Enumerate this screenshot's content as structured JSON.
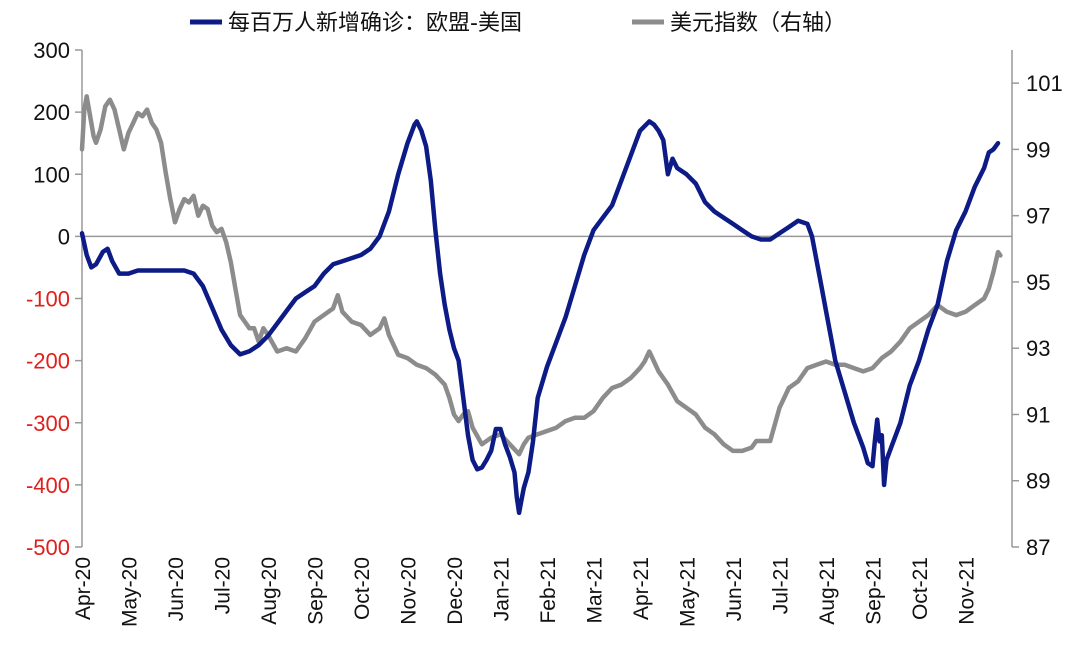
{
  "chart_data": {
    "type": "line",
    "legend_position": "top",
    "grid": false,
    "x_categories": [
      "Apr-20",
      "May-20",
      "Jun-20",
      "Jul-20",
      "Aug-20",
      "Sep-20",
      "Oct-20",
      "Nov-20",
      "Dec-20",
      "Jan-21",
      "Feb-21",
      "Mar-21",
      "Apr-21",
      "May-21",
      "Jun-21",
      "Jul-21",
      "Aug-21",
      "Sep-21",
      "Oct-21",
      "Nov-21"
    ],
    "y_left": {
      "min": -500,
      "max": 300,
      "ticks": [
        "300",
        "200",
        "100",
        "0",
        "-100",
        "-200",
        "-300",
        "-400",
        "-500"
      ],
      "negative_color": "#e0201c"
    },
    "y_right": {
      "min": 87,
      "max": 102,
      "ticks": [
        "101",
        "99",
        "97",
        "95",
        "93",
        "91",
        "89",
        "87"
      ]
    },
    "series": [
      {
        "name": "每百万人新增确诊：欧盟-美国",
        "axis": "left",
        "color": "#0d1b87",
        "points": [
          [
            0.0,
            5
          ],
          [
            0.1,
            -30
          ],
          [
            0.2,
            -50
          ],
          [
            0.3,
            -45
          ],
          [
            0.45,
            -25
          ],
          [
            0.55,
            -20
          ],
          [
            0.65,
            -40
          ],
          [
            0.8,
            -60
          ],
          [
            1.0,
            -60
          ],
          [
            1.2,
            -55
          ],
          [
            1.5,
            -55
          ],
          [
            1.8,
            -55
          ],
          [
            2.0,
            -55
          ],
          [
            2.2,
            -55
          ],
          [
            2.4,
            -60
          ],
          [
            2.6,
            -80
          ],
          [
            2.8,
            -115
          ],
          [
            3.0,
            -150
          ],
          [
            3.2,
            -175
          ],
          [
            3.4,
            -190
          ],
          [
            3.6,
            -185
          ],
          [
            3.8,
            -175
          ],
          [
            4.0,
            -160
          ],
          [
            4.2,
            -140
          ],
          [
            4.4,
            -120
          ],
          [
            4.6,
            -100
          ],
          [
            4.8,
            -90
          ],
          [
            5.0,
            -80
          ],
          [
            5.2,
            -60
          ],
          [
            5.4,
            -45
          ],
          [
            5.6,
            -40
          ],
          [
            5.8,
            -35
          ],
          [
            6.0,
            -30
          ],
          [
            6.2,
            -20
          ],
          [
            6.4,
            0
          ],
          [
            6.6,
            40
          ],
          [
            6.8,
            100
          ],
          [
            7.0,
            150
          ],
          [
            7.15,
            180
          ],
          [
            7.2,
            185
          ],
          [
            7.3,
            170
          ],
          [
            7.4,
            145
          ],
          [
            7.5,
            90
          ],
          [
            7.6,
            10
          ],
          [
            7.7,
            -60
          ],
          [
            7.8,
            -110
          ],
          [
            7.9,
            -150
          ],
          [
            8.0,
            -180
          ],
          [
            8.1,
            -200
          ],
          [
            8.2,
            -260
          ],
          [
            8.3,
            -320
          ],
          [
            8.4,
            -360
          ],
          [
            8.5,
            -375
          ],
          [
            8.6,
            -372
          ],
          [
            8.7,
            -360
          ],
          [
            8.8,
            -345
          ],
          [
            8.9,
            -310
          ],
          [
            9.0,
            -310
          ],
          [
            9.1,
            -335
          ],
          [
            9.2,
            -355
          ],
          [
            9.3,
            -380
          ],
          [
            9.35,
            -420
          ],
          [
            9.4,
            -445
          ],
          [
            9.45,
            -425
          ],
          [
            9.5,
            -405
          ],
          [
            9.6,
            -380
          ],
          [
            9.7,
            -330
          ],
          [
            9.8,
            -260
          ],
          [
            10.0,
            -210
          ],
          [
            10.2,
            -170
          ],
          [
            10.4,
            -130
          ],
          [
            10.6,
            -80
          ],
          [
            10.8,
            -30
          ],
          [
            11.0,
            10
          ],
          [
            11.2,
            30
          ],
          [
            11.4,
            50
          ],
          [
            11.6,
            90
          ],
          [
            11.8,
            130
          ],
          [
            12.0,
            170
          ],
          [
            12.2,
            185
          ],
          [
            12.3,
            180
          ],
          [
            12.4,
            170
          ],
          [
            12.5,
            155
          ],
          [
            12.6,
            100
          ],
          [
            12.7,
            125
          ],
          [
            12.8,
            110
          ],
          [
            13.0,
            100
          ],
          [
            13.2,
            85
          ],
          [
            13.4,
            55
          ],
          [
            13.6,
            40
          ],
          [
            13.8,
            30
          ],
          [
            14.0,
            20
          ],
          [
            14.2,
            10
          ],
          [
            14.4,
            0
          ],
          [
            14.6,
            -5
          ],
          [
            14.8,
            -5
          ],
          [
            15.0,
            5
          ],
          [
            15.2,
            15
          ],
          [
            15.4,
            25
          ],
          [
            15.6,
            20
          ],
          [
            15.7,
            0
          ],
          [
            15.8,
            -40
          ],
          [
            15.9,
            -80
          ],
          [
            16.0,
            -120
          ],
          [
            16.1,
            -160
          ],
          [
            16.2,
            -200
          ],
          [
            16.4,
            -250
          ],
          [
            16.6,
            -300
          ],
          [
            16.8,
            -340
          ],
          [
            16.9,
            -365
          ],
          [
            17.0,
            -370
          ],
          [
            17.05,
            -330
          ],
          [
            17.1,
            -295
          ],
          [
            17.15,
            -330
          ],
          [
            17.2,
            -320
          ],
          [
            17.25,
            -400
          ],
          [
            17.3,
            -360
          ],
          [
            17.4,
            -340
          ],
          [
            17.6,
            -300
          ],
          [
            17.8,
            -240
          ],
          [
            18.0,
            -200
          ],
          [
            18.2,
            -150
          ],
          [
            18.4,
            -110
          ],
          [
            18.6,
            -40
          ],
          [
            18.8,
            10
          ],
          [
            19.0,
            40
          ],
          [
            19.2,
            80
          ],
          [
            19.4,
            110
          ],
          [
            19.5,
            135
          ],
          [
            19.6,
            140
          ],
          [
            19.7,
            150
          ]
        ]
      },
      {
        "name": "美元指数（右轴）",
        "axis": "right",
        "color": "#8c8c8c",
        "points": [
          [
            0.0,
            99.0
          ],
          [
            0.05,
            100.2
          ],
          [
            0.1,
            100.6
          ],
          [
            0.15,
            100.2
          ],
          [
            0.2,
            99.8
          ],
          [
            0.25,
            99.4
          ],
          [
            0.3,
            99.2
          ],
          [
            0.4,
            99.6
          ],
          [
            0.5,
            100.3
          ],
          [
            0.6,
            100.5
          ],
          [
            0.7,
            100.2
          ],
          [
            0.8,
            99.6
          ],
          [
            0.9,
            99.0
          ],
          [
            1.0,
            99.5
          ],
          [
            1.1,
            99.8
          ],
          [
            1.2,
            100.1
          ],
          [
            1.3,
            100.0
          ],
          [
            1.4,
            100.2
          ],
          [
            1.5,
            99.8
          ],
          [
            1.6,
            99.6
          ],
          [
            1.7,
            99.2
          ],
          [
            1.8,
            98.3
          ],
          [
            1.9,
            97.5
          ],
          [
            2.0,
            96.8
          ],
          [
            2.1,
            97.2
          ],
          [
            2.2,
            97.5
          ],
          [
            2.3,
            97.4
          ],
          [
            2.4,
            97.6
          ],
          [
            2.5,
            97.0
          ],
          [
            2.6,
            97.3
          ],
          [
            2.7,
            97.2
          ],
          [
            2.8,
            96.7
          ],
          [
            2.9,
            96.5
          ],
          [
            3.0,
            96.6
          ],
          [
            3.1,
            96.2
          ],
          [
            3.2,
            95.6
          ],
          [
            3.3,
            94.8
          ],
          [
            3.4,
            94.0
          ],
          [
            3.5,
            93.8
          ],
          [
            3.6,
            93.6
          ],
          [
            3.7,
            93.6
          ],
          [
            3.8,
            93.2
          ],
          [
            3.9,
            93.6
          ],
          [
            4.0,
            93.4
          ],
          [
            4.2,
            92.9
          ],
          [
            4.4,
            93.0
          ],
          [
            4.6,
            92.9
          ],
          [
            4.8,
            93.3
          ],
          [
            5.0,
            93.8
          ],
          [
            5.2,
            94.0
          ],
          [
            5.4,
            94.2
          ],
          [
            5.5,
            94.6
          ],
          [
            5.6,
            94.1
          ],
          [
            5.8,
            93.8
          ],
          [
            6.0,
            93.7
          ],
          [
            6.2,
            93.4
          ],
          [
            6.4,
            93.6
          ],
          [
            6.5,
            93.9
          ],
          [
            6.6,
            93.4
          ],
          [
            6.8,
            92.8
          ],
          [
            7.0,
            92.7
          ],
          [
            7.2,
            92.5
          ],
          [
            7.4,
            92.4
          ],
          [
            7.6,
            92.2
          ],
          [
            7.8,
            91.9
          ],
          [
            7.9,
            91.5
          ],
          [
            8.0,
            91.0
          ],
          [
            8.1,
            90.8
          ],
          [
            8.2,
            91.0
          ],
          [
            8.3,
            91.1
          ],
          [
            8.4,
            90.6
          ],
          [
            8.6,
            90.1
          ],
          [
            8.8,
            90.3
          ],
          [
            9.0,
            90.4
          ],
          [
            9.2,
            90.1
          ],
          [
            9.4,
            89.8
          ],
          [
            9.5,
            90.1
          ],
          [
            9.6,
            90.3
          ],
          [
            9.8,
            90.4
          ],
          [
            10.0,
            90.5
          ],
          [
            10.2,
            90.6
          ],
          [
            10.4,
            90.8
          ],
          [
            10.6,
            90.9
          ],
          [
            10.8,
            90.9
          ],
          [
            11.0,
            91.1
          ],
          [
            11.2,
            91.5
          ],
          [
            11.4,
            91.8
          ],
          [
            11.6,
            91.9
          ],
          [
            11.8,
            92.1
          ],
          [
            12.0,
            92.4
          ],
          [
            12.1,
            92.6
          ],
          [
            12.2,
            92.9
          ],
          [
            12.3,
            92.6
          ],
          [
            12.4,
            92.3
          ],
          [
            12.6,
            91.9
          ],
          [
            12.8,
            91.4
          ],
          [
            13.0,
            91.2
          ],
          [
            13.2,
            91.0
          ],
          [
            13.4,
            90.6
          ],
          [
            13.6,
            90.4
          ],
          [
            13.8,
            90.1
          ],
          [
            14.0,
            89.9
          ],
          [
            14.2,
            89.9
          ],
          [
            14.4,
            90.0
          ],
          [
            14.5,
            90.2
          ],
          [
            14.6,
            90.2
          ],
          [
            14.8,
            90.2
          ],
          [
            15.0,
            91.2
          ],
          [
            15.2,
            91.8
          ],
          [
            15.4,
            92.0
          ],
          [
            15.6,
            92.4
          ],
          [
            15.8,
            92.5
          ],
          [
            16.0,
            92.6
          ],
          [
            16.2,
            92.5
          ],
          [
            16.4,
            92.5
          ],
          [
            16.6,
            92.4
          ],
          [
            16.8,
            92.3
          ],
          [
            17.0,
            92.4
          ],
          [
            17.2,
            92.7
          ],
          [
            17.4,
            92.9
          ],
          [
            17.6,
            93.2
          ],
          [
            17.8,
            93.6
          ],
          [
            18.0,
            93.8
          ],
          [
            18.2,
            94.0
          ],
          [
            18.4,
            94.3
          ],
          [
            18.6,
            94.1
          ],
          [
            18.8,
            94.0
          ],
          [
            19.0,
            94.1
          ],
          [
            19.2,
            94.3
          ],
          [
            19.4,
            94.5
          ],
          [
            19.5,
            94.8
          ],
          [
            19.6,
            95.3
          ],
          [
            19.65,
            95.6
          ],
          [
            19.7,
            95.9
          ],
          [
            19.75,
            95.8
          ]
        ]
      }
    ]
  }
}
